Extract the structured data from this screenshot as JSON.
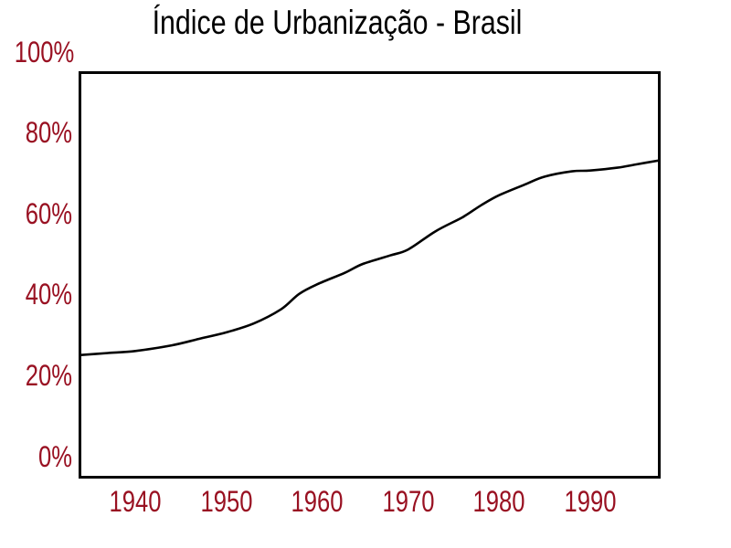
{
  "title": "Índice de Urbanização - Brasil",
  "colors": {
    "background": "#ffffff",
    "title": "#000000",
    "axis": "#000000",
    "line": "#000000",
    "tick_label": "#991122"
  },
  "chart_data": {
    "type": "line",
    "title": "Índice de Urbanização - Brasil",
    "xlabel": "",
    "ylabel": "",
    "xlim": [
      1933.9,
      1997.6
    ],
    "ylim": [
      0,
      100
    ],
    "grid": false,
    "legend": false,
    "x_tick_values": [
      1940,
      1950,
      1960,
      1970,
      1980,
      1990
    ],
    "x_tick_labels": [
      "1940",
      "1950",
      "1960",
      "1970",
      "1980",
      "1990"
    ],
    "y_tick_values": [
      0,
      20,
      40,
      60,
      80,
      100
    ],
    "y_tick_labels": [
      "0%",
      "20%",
      "40%",
      "60%",
      "80%",
      "100%"
    ],
    "series": [
      {
        "points": [
          [
            1934,
            30.2
          ],
          [
            1937,
            30.7
          ],
          [
            1940,
            31.2
          ],
          [
            1944,
            32.6
          ],
          [
            1947,
            34.2
          ],
          [
            1950,
            35.8
          ],
          [
            1953,
            38.0
          ],
          [
            1956,
            41.5
          ],
          [
            1958,
            45.3
          ],
          [
            1960,
            47.7
          ],
          [
            1963,
            50.5
          ],
          [
            1965,
            52.7
          ],
          [
            1968,
            54.8
          ],
          [
            1970,
            56.3
          ],
          [
            1973,
            60.8
          ],
          [
            1976,
            64.3
          ],
          [
            1978,
            67.2
          ],
          [
            1980,
            69.7
          ],
          [
            1983,
            72.5
          ],
          [
            1985,
            74.3
          ],
          [
            1988,
            75.6
          ],
          [
            1990,
            75.8
          ],
          [
            1993,
            76.5
          ],
          [
            1995,
            77.3
          ],
          [
            1997.6,
            78.3
          ]
        ]
      }
    ]
  }
}
